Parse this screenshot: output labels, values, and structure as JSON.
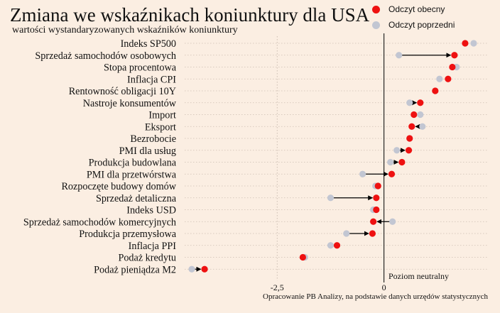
{
  "chart_data": {
    "type": "dot-plot",
    "title": "Zmiana we wskaźnikach koniunktury dla USA",
    "subtitle": "wartości wystandaryzowanych wskaźników koniunktury",
    "legend": [
      {
        "label": "Odczyt obecny",
        "color": "#ee1111"
      },
      {
        "label": "Odczyt poprzedni",
        "color": "#c2c6d2"
      }
    ],
    "legend_position": "top-right",
    "xlim": [
      -4.6,
      2.45
    ],
    "xticks": [
      {
        "value": -2.5,
        "label": "-2,5"
      },
      {
        "value": 0,
        "label": "0"
      }
    ],
    "reference_line": {
      "value": 0,
      "label": "Poziom neutralny"
    },
    "grid": "dotted vertical",
    "source": "Opracowanie PB Analizy, na podstawie danych urzędów statystycznych",
    "categories": [
      "Indeks SP500",
      "Sprzedaż samochodów osobowych",
      "Stopa procentowa",
      "Inflacja CPI",
      "Rentowność obligacji 10Y",
      "Nastroje konsumentów",
      "Import",
      "Eksport",
      "Bezrobocie",
      "PMI dla usług",
      "Produkcja budowlana",
      "PMI dla przetwórstwa",
      "Rozpoczęte budowy domów",
      "Sprzedaż detaliczna",
      "Indeks USD",
      "Sprzedaż samochodów komercyjnych",
      "Produkcja przemysłowa",
      "Inflacja PPI",
      "Podaż kredytu",
      "Podaż pieniądza M2"
    ],
    "series": [
      {
        "name": "Odczyt obecny",
        "values": [
          1.9,
          1.65,
          1.6,
          1.5,
          1.2,
          0.85,
          0.7,
          0.65,
          0.6,
          0.58,
          0.42,
          0.18,
          -0.14,
          -0.18,
          -0.18,
          -0.25,
          -0.27,
          -1.1,
          -1.9,
          -4.2
        ]
      },
      {
        "name": "Odczyt poprzedni",
        "values": [
          2.1,
          0.35,
          1.7,
          1.3,
          1.2,
          0.6,
          0.85,
          0.9,
          0.6,
          0.3,
          0.15,
          -0.5,
          -0.2,
          -1.25,
          -0.25,
          0.2,
          -0.88,
          -1.25,
          -1.85,
          -4.5
        ]
      }
    ]
  }
}
